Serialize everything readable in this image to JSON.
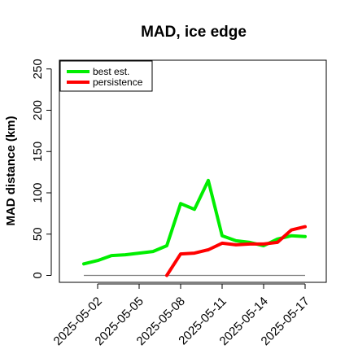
{
  "chart_data": {
    "type": "line",
    "title": "MAD, ice edge",
    "xlabel": "",
    "ylabel": "MAD distance (km)",
    "x": [
      "2025-05-01",
      "2025-05-02",
      "2025-05-03",
      "2025-05-04",
      "2025-05-05",
      "2025-05-06",
      "2025-05-07",
      "2025-05-08",
      "2025-05-09",
      "2025-05-10",
      "2025-05-11",
      "2025-05-12",
      "2025-05-13",
      "2025-05-14",
      "2025-05-15",
      "2025-05-16",
      "2025-05-17"
    ],
    "xticks": [
      "2025-05-02",
      "2025-05-05",
      "2025-05-08",
      "2025-05-11",
      "2025-05-14",
      "2025-05-17"
    ],
    "yticks": [
      0,
      50,
      100,
      150,
      200,
      250
    ],
    "ylim": [
      -5,
      263
    ],
    "grid": false,
    "legend_position": "top-left",
    "series": [
      {
        "name": "best est.",
        "color": "#00ee00",
        "values": [
          14,
          18,
          24,
          25,
          27,
          29,
          36,
          87,
          80,
          115,
          48,
          42,
          40,
          36,
          44,
          48,
          47
        ]
      },
      {
        "name": "persistence",
        "color": "#ff0000",
        "values": [
          null,
          null,
          null,
          null,
          null,
          null,
          0,
          26,
          27,
          31,
          39,
          37,
          38,
          38,
          40,
          55,
          59
        ]
      }
    ],
    "reference_line": {
      "value": 0,
      "color": "#808080"
    }
  }
}
